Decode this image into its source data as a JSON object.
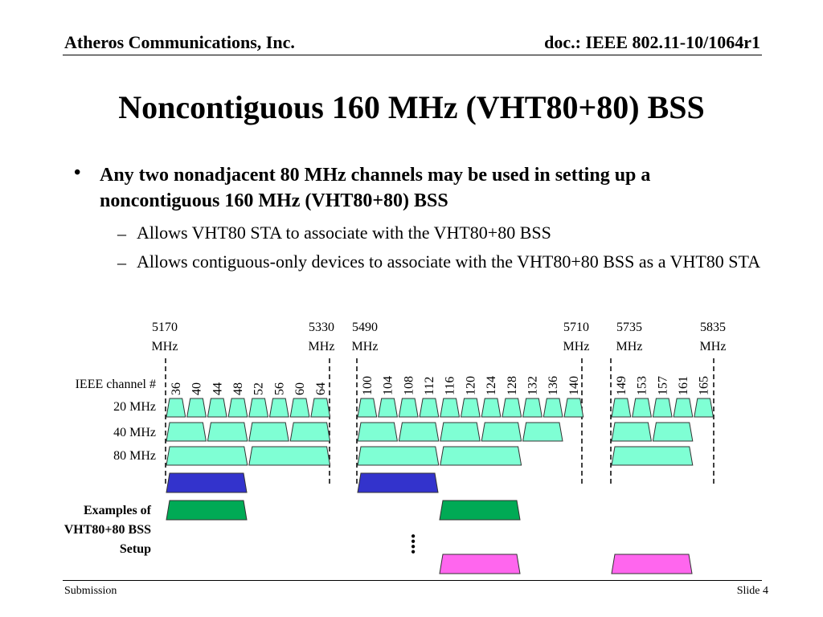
{
  "header": {
    "company": "Atheros Communications, Inc.",
    "doc": "doc.: IEEE 802.11-10/1064r1"
  },
  "title": "Noncontiguous 160 MHz (VHT80+80) BSS",
  "bullet": {
    "symbol": "•",
    "text": "Any two nonadjacent 80 MHz channels may be used in setting up a noncontiguous 160 MHz (VHT80+80) BSS",
    "subs": [
      {
        "dash": "–",
        "text": "Allows VHT80 STA to associate with the VHT80+80 BSS"
      },
      {
        "dash": "–",
        "text": "Allows contiguous-only devices to associate with the VHT80+80 BSS as a VHT80 STA"
      }
    ]
  },
  "diagram": {
    "frequencies": [
      {
        "value": "5170",
        "unit": "MHz"
      },
      {
        "value": "5330",
        "unit": "MHz"
      },
      {
        "value": "5490",
        "unit": "MHz"
      },
      {
        "value": "5710",
        "unit": "MHz"
      },
      {
        "value": "5735",
        "unit": "MHz"
      },
      {
        "value": "5835",
        "unit": "MHz"
      }
    ],
    "row_labels": {
      "channel": "IEEE channel #",
      "mhz20": "20 MHz",
      "mhz40": "40 MHz",
      "mhz80": "80 MHz"
    },
    "channels": [
      "36",
      "40",
      "44",
      "48",
      "52",
      "56",
      "60",
      "64",
      "100",
      "104",
      "108",
      "112",
      "116",
      "120",
      "124",
      "128",
      "132",
      "136",
      "140",
      "149",
      "153",
      "157",
      "161",
      "165"
    ],
    "examples_label": [
      "Examples of",
      "VHT80+80 BSS",
      "Setup"
    ],
    "ellipsis": "....",
    "colors": {
      "channel_fill": "#7fffd4",
      "example_blue": "#3333cc",
      "example_green": "#00aa55",
      "example_magenta": "#ff66ee",
      "band_edge": "#000000"
    }
  },
  "footer": {
    "left": "Submission",
    "right": "Slide 4"
  }
}
